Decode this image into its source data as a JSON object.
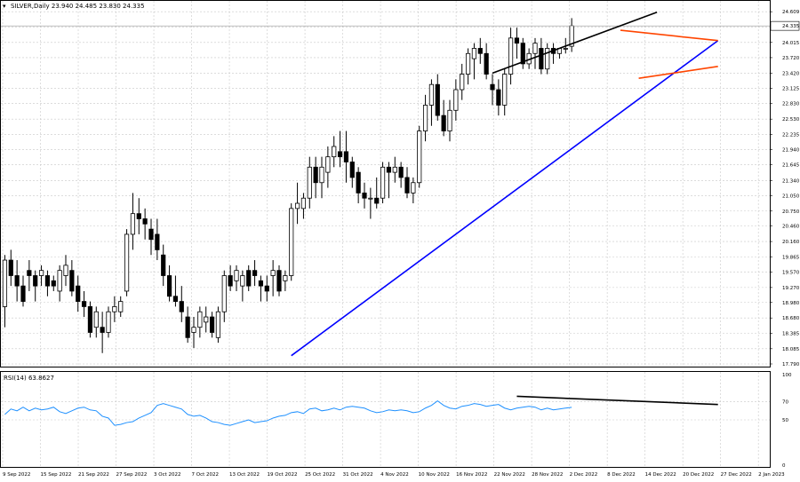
{
  "header": {
    "symbol_line": "SILVER,Daily  23.940 24.485 23.830 24.335",
    "symbol_menu_icon": "triangle-down-icon"
  },
  "colors": {
    "bull_body": "#ffffff",
    "bear_body": "#000000",
    "wick": "#000000",
    "rsi_line": "#1e90ff",
    "uptrend_line": "#0000ff",
    "channel_line": "#000000",
    "wedge_lines": "#ff4500",
    "grid": "#c8c8c8",
    "background": "#ffffff"
  },
  "chart_data": [
    {
      "type": "candlestick",
      "title": "SILVER,Daily  23.940 24.485 23.830 24.335",
      "ylim": [
        17.79,
        24.75
      ],
      "price_ticks": [
        "24.609",
        "24.315",
        "24.015",
        "23.720",
        "23.420",
        "23.125",
        "22.830",
        "22.530",
        "22.235",
        "21.940",
        "21.645",
        "21.340",
        "21.050",
        "20.750",
        "20.460",
        "20.160",
        "19.865",
        "19.570",
        "19.270",
        "18.980",
        "18.680",
        "18.385",
        "18.085",
        "17.790"
      ],
      "last_price_label": "24.335",
      "x_tick_labels": [
        "9 Sep 2022",
        "15 Sep 2022",
        "21 Sep 2022",
        "27 Sep 2022",
        "3 Oct 2022",
        "7 Oct 2022",
        "13 Oct 2022",
        "19 Oct 2022",
        "25 Oct 2022",
        "31 Oct 2022",
        "4 Nov 2022",
        "10 Nov 2022",
        "16 Nov 2022",
        "22 Nov 2022",
        "28 Nov 2022",
        "2 Dec 2022",
        "8 Dec 2022",
        "14 Dec 2022",
        "20 Dec 2022",
        "27 Dec 2022",
        "2 Jan 2023"
      ],
      "ohlc": [
        [
          18.9,
          19.9,
          18.5,
          19.8
        ],
        [
          19.8,
          20.0,
          19.3,
          19.5
        ],
        [
          19.5,
          19.8,
          19.0,
          19.3
        ],
        [
          19.3,
          19.5,
          18.9,
          19.0
        ],
        [
          19.6,
          19.8,
          19.2,
          19.5
        ],
        [
          19.5,
          19.6,
          19.0,
          19.3
        ],
        [
          19.5,
          19.7,
          19.3,
          19.6
        ],
        [
          19.5,
          19.6,
          19.1,
          19.3
        ],
        [
          19.4,
          19.5,
          19.2,
          19.3
        ],
        [
          19.2,
          19.7,
          19.0,
          19.6
        ],
        [
          19.5,
          19.9,
          19.3,
          19.7
        ],
        [
          19.6,
          19.8,
          19.1,
          19.2
        ],
        [
          19.3,
          19.5,
          18.8,
          19.0
        ],
        [
          19.0,
          19.2,
          18.7,
          18.9
        ],
        [
          18.9,
          19.0,
          18.3,
          18.4
        ],
        [
          18.5,
          18.9,
          18.3,
          18.8
        ],
        [
          18.5,
          18.8,
          18.0,
          18.4
        ],
        [
          18.4,
          18.9,
          18.3,
          18.8
        ],
        [
          18.8,
          19.1,
          18.6,
          18.9
        ],
        [
          18.8,
          19.1,
          18.7,
          19.0
        ],
        [
          19.2,
          20.4,
          19.1,
          20.3
        ],
        [
          20.3,
          21.1,
          20.0,
          20.7
        ],
        [
          20.7,
          21.0,
          20.3,
          20.6
        ],
        [
          20.6,
          20.8,
          20.2,
          20.5
        ],
        [
          20.4,
          20.6,
          19.9,
          20.2
        ],
        [
          20.3,
          20.6,
          19.8,
          20.0
        ],
        [
          19.9,
          20.1,
          19.3,
          19.5
        ],
        [
          19.5,
          19.7,
          19.0,
          19.1
        ],
        [
          19.1,
          19.5,
          18.9,
          19.0
        ],
        [
          19.0,
          19.3,
          18.6,
          18.8
        ],
        [
          18.7,
          18.9,
          18.2,
          18.3
        ],
        [
          18.4,
          18.7,
          18.1,
          18.5
        ],
        [
          18.5,
          18.9,
          18.3,
          18.8
        ],
        [
          18.6,
          18.9,
          18.4,
          18.7
        ],
        [
          18.7,
          18.8,
          18.3,
          18.4
        ],
        [
          18.3,
          18.9,
          18.2,
          18.8
        ],
        [
          18.8,
          19.6,
          18.6,
          19.5
        ],
        [
          19.5,
          19.7,
          19.2,
          19.3
        ],
        [
          19.4,
          19.7,
          19.2,
          19.6
        ],
        [
          19.3,
          19.6,
          19.0,
          19.5
        ],
        [
          19.6,
          19.7,
          19.2,
          19.3
        ],
        [
          19.6,
          19.8,
          19.3,
          19.5
        ],
        [
          19.4,
          19.5,
          19.0,
          19.3
        ],
        [
          19.3,
          19.5,
          19.0,
          19.2
        ],
        [
          19.5,
          19.8,
          19.1,
          19.6
        ],
        [
          19.6,
          19.7,
          19.1,
          19.2
        ],
        [
          19.4,
          19.6,
          19.2,
          19.5
        ],
        [
          19.5,
          20.9,
          19.4,
          20.8
        ],
        [
          20.8,
          21.3,
          20.5,
          20.9
        ],
        [
          20.8,
          21.1,
          20.6,
          21.0
        ],
        [
          21.0,
          21.8,
          20.8,
          21.6
        ],
        [
          21.6,
          21.8,
          21.0,
          21.3
        ],
        [
          21.3,
          21.8,
          21.0,
          21.6
        ],
        [
          21.5,
          22.0,
          21.2,
          21.8
        ],
        [
          21.8,
          22.2,
          21.6,
          22.0
        ],
        [
          21.9,
          22.3,
          21.6,
          21.8
        ],
        [
          21.9,
          22.3,
          21.3,
          21.7
        ],
        [
          21.7,
          21.8,
          21.2,
          21.4
        ],
        [
          21.5,
          21.6,
          20.9,
          21.1
        ],
        [
          21.1,
          21.3,
          20.8,
          21.0
        ],
        [
          21.0,
          21.2,
          20.6,
          21.0
        ],
        [
          21.0,
          21.4,
          20.8,
          20.9
        ],
        [
          21.0,
          21.7,
          20.9,
          21.6
        ],
        [
          21.6,
          21.7,
          21.0,
          21.5
        ],
        [
          21.5,
          21.8,
          21.3,
          21.6
        ],
        [
          21.6,
          21.7,
          21.2,
          21.4
        ],
        [
          21.4,
          21.6,
          21.0,
          21.1
        ],
        [
          21.1,
          21.4,
          20.9,
          21.3
        ],
        [
          21.3,
          22.4,
          21.2,
          22.3
        ],
        [
          22.3,
          23.0,
          22.1,
          22.8
        ],
        [
          22.8,
          23.3,
          22.4,
          23.2
        ],
        [
          23.2,
          23.4,
          22.5,
          22.6
        ],
        [
          22.6,
          22.9,
          22.2,
          22.3
        ],
        [
          22.3,
          22.9,
          22.1,
          22.7
        ],
        [
          22.7,
          23.3,
          22.5,
          23.1
        ],
        [
          23.1,
          23.6,
          22.9,
          23.4
        ],
        [
          23.4,
          23.9,
          23.2,
          23.8
        ],
        [
          23.7,
          24.0,
          23.3,
          23.9
        ],
        [
          23.9,
          24.1,
          23.6,
          23.8
        ],
        [
          23.8,
          24.0,
          23.3,
          23.4
        ],
        [
          23.2,
          23.4,
          22.8,
          23.1
        ],
        [
          23.1,
          23.3,
          22.6,
          22.8
        ],
        [
          22.8,
          23.5,
          22.6,
          23.4
        ],
        [
          23.4,
          24.3,
          23.2,
          24.1
        ],
        [
          24.1,
          24.3,
          23.7,
          24.0
        ],
        [
          24.0,
          24.1,
          23.5,
          23.6
        ],
        [
          23.6,
          23.9,
          23.5,
          23.8
        ],
        [
          23.8,
          24.1,
          23.5,
          24.0
        ],
        [
          23.9,
          24.1,
          23.4,
          23.5
        ],
        [
          23.5,
          24.0,
          23.4,
          23.9
        ],
        [
          23.9,
          24.0,
          23.6,
          23.8
        ],
        [
          23.8,
          23.9,
          23.7,
          23.9
        ],
        [
          23.9,
          24.1,
          23.8,
          23.9
        ],
        [
          23.94,
          24.485,
          23.83,
          24.335
        ]
      ],
      "annotations": [
        {
          "name": "blue-uptrend-line",
          "color": "#0000ff",
          "from": [
            47,
            17.95
          ],
          "to": [
            117,
            24.05
          ]
        },
        {
          "name": "black-resistance-line",
          "color": "#000000",
          "from": [
            80,
            23.42
          ],
          "to": [
            107,
            24.6
          ]
        },
        {
          "name": "orange-upper-wedge-line",
          "color": "#ff4500",
          "from": [
            101,
            24.25
          ],
          "to": [
            117,
            24.05
          ]
        },
        {
          "name": "orange-lower-wedge-line",
          "color": "#ff4500",
          "from": [
            104,
            23.32
          ],
          "to": [
            117,
            23.55
          ]
        }
      ]
    },
    {
      "type": "line",
      "title": "RSI(14) 63.8627",
      "ylim": [
        0,
        100
      ],
      "y_ticks": [
        "100",
        "70",
        "50",
        "0"
      ],
      "series": [
        {
          "name": "RSI(14)",
          "values": [
            56,
            62,
            60,
            64,
            60,
            63,
            61,
            62,
            64,
            59,
            57,
            60,
            63,
            64,
            61,
            60,
            54,
            52,
            44,
            45,
            47,
            48,
            52,
            55,
            58,
            66,
            68,
            66,
            64,
            62,
            56,
            54,
            55,
            52,
            48,
            47,
            45,
            44,
            46,
            48,
            50,
            47,
            48,
            49,
            52,
            54,
            55,
            58,
            59,
            57,
            62,
            63,
            60,
            61,
            63,
            61,
            64,
            65,
            64,
            63,
            60,
            58,
            59,
            61,
            60,
            61,
            60,
            58,
            59,
            63,
            66,
            71,
            66,
            63,
            62,
            65,
            66,
            68,
            67,
            65,
            66,
            67,
            63,
            61,
            63,
            64,
            65,
            64,
            61,
            63,
            61,
            62,
            63,
            63.8627
          ]
        }
      ],
      "annotations": [
        {
          "name": "rsi-divergence-line",
          "color": "#000000",
          "from": [
            84,
            76
          ],
          "to": [
            117,
            67
          ]
        }
      ]
    }
  ]
}
